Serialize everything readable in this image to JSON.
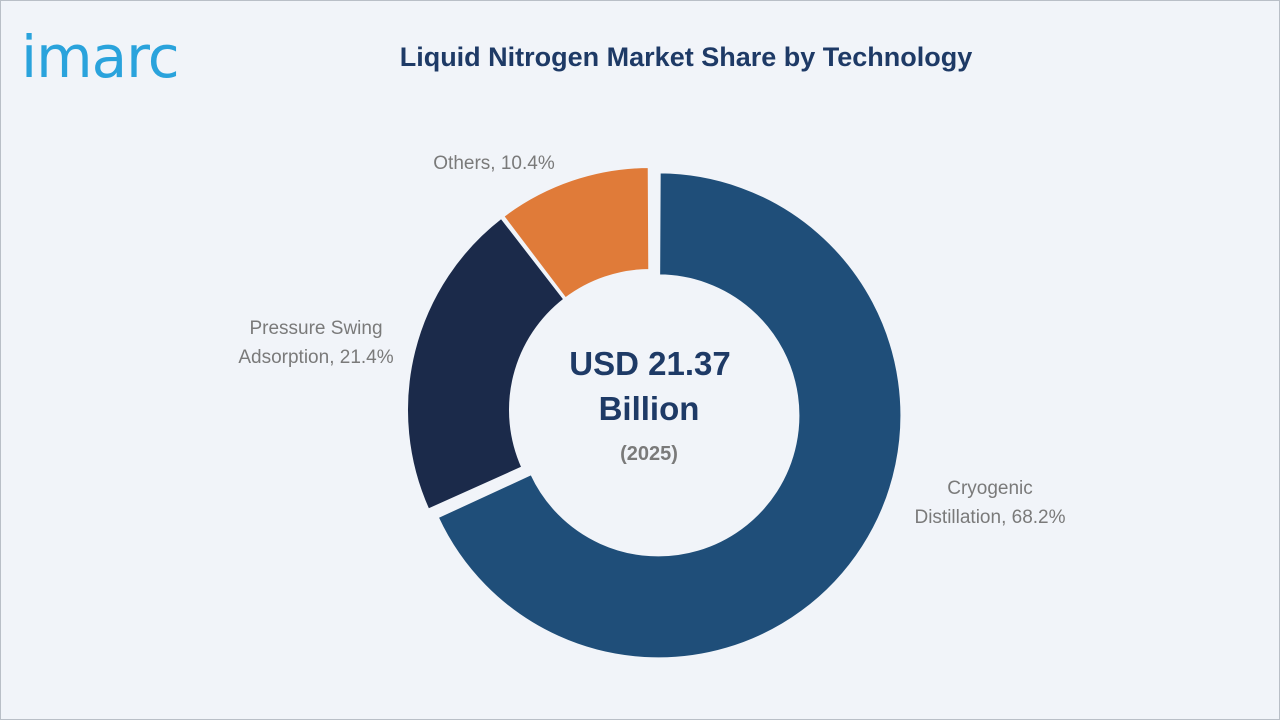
{
  "brand": {
    "logo_text": "imarc",
    "logo_color": "#2aa3dc"
  },
  "chart_data": {
    "type": "pie",
    "title": "Liquid Nitrogen Market Share by Technology",
    "center_label": {
      "value_line1": "USD 21.37",
      "value_line2": "Billion",
      "year": "(2025)"
    },
    "unit": "%",
    "slices": [
      {
        "name": "Cryogenic Distillation",
        "value": 68.2,
        "label_lines": [
          "Cryogenic",
          "Distillation, 68.2%"
        ],
        "color": "#1f4e79",
        "exploded": true
      },
      {
        "name": "Pressure Swing Adsorption",
        "value": 21.4,
        "label_lines": [
          "Pressure Swing",
          "Adsorption, 21.4%"
        ],
        "color": "#1b2a4a",
        "exploded": false
      },
      {
        "name": "Others",
        "value": 10.4,
        "label_lines": [
          "Others, 10.4%"
        ],
        "color": "#e07b39",
        "exploded": false
      }
    ]
  }
}
